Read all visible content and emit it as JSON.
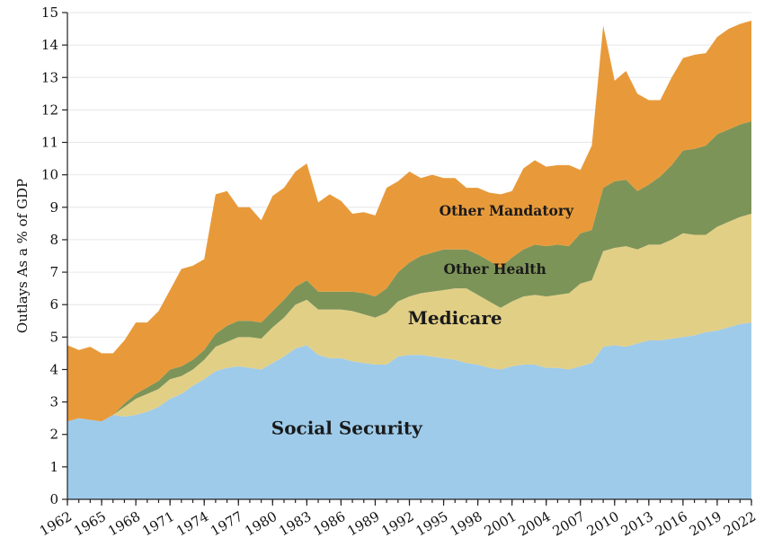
{
  "chart_data": {
    "type": "area",
    "stacked": true,
    "ylabel": "Outlays As a % of GDP",
    "xlabel": "",
    "xlim": [
      1962,
      2022
    ],
    "ylim": [
      0,
      15
    ],
    "yticks": [
      "0",
      "1",
      "2",
      "3",
      "4",
      "5",
      "6",
      "7",
      "8",
      "9",
      "10",
      "11",
      "12",
      "13",
      "14",
      "15"
    ],
    "xticks": [
      "1962",
      "1965",
      "1968",
      "1971",
      "1974",
      "1977",
      "1980",
      "1983",
      "1986",
      "1989",
      "1992",
      "1995",
      "1998",
      "2001",
      "2004",
      "2007",
      "2010",
      "2013",
      "2016",
      "2019",
      "2022"
    ],
    "grid": "horizontal",
    "x": [
      1962,
      1963,
      1964,
      1965,
      1966,
      1967,
      1968,
      1969,
      1970,
      1971,
      1972,
      1973,
      1974,
      1975,
      1976,
      1977,
      1978,
      1979,
      1980,
      1981,
      1982,
      1983,
      1984,
      1985,
      1986,
      1987,
      1988,
      1989,
      1990,
      1991,
      1992,
      1993,
      1994,
      1995,
      1996,
      1997,
      1998,
      1999,
      2000,
      2001,
      2002,
      2003,
      2004,
      2005,
      2006,
      2007,
      2008,
      2009,
      2010,
      2011,
      2012,
      2013,
      2014,
      2015,
      2016,
      2017,
      2018,
      2019,
      2020,
      2021,
      2022
    ],
    "series": [
      {
        "name": "Social Security",
        "color": "#9ecbea",
        "values": [
          2.4,
          2.5,
          2.45,
          2.4,
          2.6,
          2.55,
          2.6,
          2.7,
          2.85,
          3.1,
          3.25,
          3.5,
          3.7,
          3.95,
          4.05,
          4.1,
          4.05,
          4.0,
          4.2,
          4.4,
          4.65,
          4.75,
          4.45,
          4.35,
          4.35,
          4.25,
          4.2,
          4.15,
          4.15,
          4.4,
          4.45,
          4.45,
          4.4,
          4.35,
          4.3,
          4.2,
          4.15,
          4.05,
          4.0,
          4.1,
          4.15,
          4.15,
          4.05,
          4.05,
          4.0,
          4.1,
          4.2,
          4.7,
          4.75,
          4.7,
          4.8,
          4.9,
          4.9,
          4.95,
          5.0,
          5.05,
          5.15,
          5.2,
          5.3,
          5.4,
          5.45
        ]
      },
      {
        "name": "Medicare",
        "color": "#e2cf86",
        "values": [
          0,
          0,
          0,
          0,
          0,
          0.3,
          0.5,
          0.55,
          0.55,
          0.6,
          0.55,
          0.5,
          0.6,
          0.75,
          0.8,
          0.9,
          0.95,
          0.95,
          1.1,
          1.2,
          1.35,
          1.4,
          1.4,
          1.5,
          1.5,
          1.55,
          1.5,
          1.45,
          1.6,
          1.7,
          1.8,
          1.9,
          2.0,
          2.1,
          2.2,
          2.3,
          2.15,
          2.05,
          1.9,
          2.0,
          2.1,
          2.15,
          2.2,
          2.25,
          2.35,
          2.55,
          2.55,
          2.95,
          3.0,
          3.1,
          2.9,
          2.95,
          2.95,
          3.05,
          3.2,
          3.1,
          3.0,
          3.2,
          3.25,
          3.3,
          3.35
        ]
      },
      {
        "name": "Other Health",
        "color": "#7d9458",
        "values": [
          0,
          0,
          0,
          0,
          0,
          0.1,
          0.15,
          0.2,
          0.25,
          0.3,
          0.3,
          0.3,
          0.3,
          0.4,
          0.5,
          0.5,
          0.5,
          0.5,
          0.5,
          0.55,
          0.55,
          0.6,
          0.55,
          0.55,
          0.55,
          0.6,
          0.65,
          0.65,
          0.75,
          0.9,
          1.05,
          1.15,
          1.2,
          1.25,
          1.2,
          1.2,
          1.25,
          1.25,
          1.25,
          1.35,
          1.45,
          1.55,
          1.55,
          1.55,
          1.45,
          1.55,
          1.55,
          1.95,
          2.05,
          2.05,
          1.8,
          1.85,
          2.1,
          2.3,
          2.55,
          2.65,
          2.75,
          2.85,
          2.85,
          2.85,
          2.85
        ]
      },
      {
        "name": "Other Mandatory",
        "color": "#e89a3a",
        "values": [
          2.35,
          2.1,
          2.25,
          2.1,
          1.9,
          1.95,
          2.2,
          2.0,
          2.15,
          2.45,
          3.0,
          2.9,
          2.8,
          4.3,
          4.15,
          3.5,
          3.5,
          3.15,
          3.55,
          3.45,
          3.55,
          3.6,
          2.75,
          3.0,
          2.8,
          2.4,
          2.5,
          2.5,
          3.1,
          2.8,
          2.8,
          2.4,
          2.4,
          2.2,
          2.2,
          1.9,
          2.05,
          2.1,
          2.25,
          2.05,
          2.5,
          2.6,
          2.45,
          2.45,
          2.5,
          1.95,
          2.6,
          5.0,
          3.1,
          3.35,
          3.0,
          2.6,
          2.35,
          2.7,
          2.85,
          2.9,
          2.85,
          3.0,
          3.1,
          3.1,
          3.1
        ]
      }
    ]
  }
}
